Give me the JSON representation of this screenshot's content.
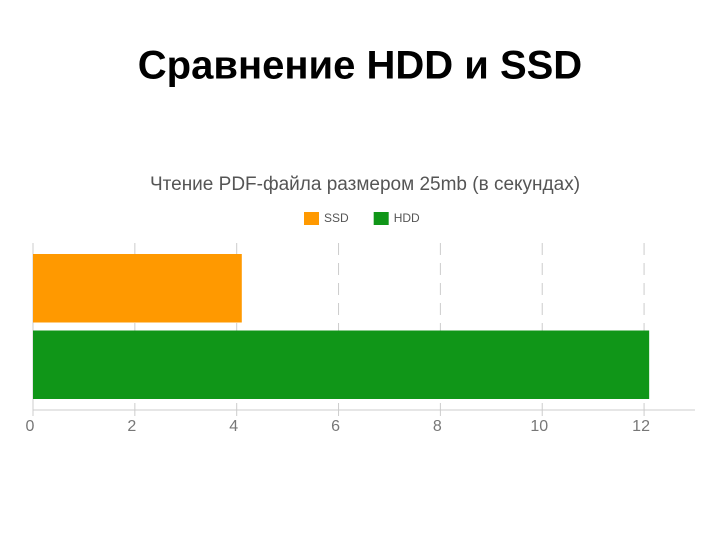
{
  "slide_title": "Сравнение HDD и SSD",
  "chart_data": {
    "type": "bar",
    "orientation": "horizontal",
    "title": "Чтение PDF-файла размером 25mb (в секундах)",
    "categories": [
      null
    ],
    "series": [
      {
        "name": "SSD",
        "color": "#ff9900",
        "values": [
          4.1
        ]
      },
      {
        "name": "HDD",
        "color": "#109618",
        "values": [
          12.1
        ]
      }
    ],
    "xlim": [
      0,
      13
    ],
    "xticks": [
      0,
      2,
      4,
      6,
      8,
      10,
      12
    ],
    "grid": true,
    "legend": "top"
  }
}
